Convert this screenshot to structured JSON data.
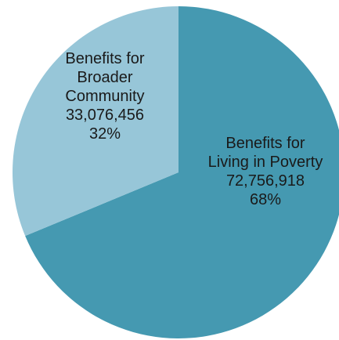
{
  "chart_data": {
    "type": "pie",
    "title": "",
    "slices": [
      {
        "label_lines": [
          "Benefits for",
          "Living in Poverty"
        ],
        "value": 72756918,
        "value_text": "72,756,918",
        "percent_text": "68%",
        "color": "#4599b1"
      },
      {
        "label_lines": [
          "Benefits for",
          "Broader",
          "Community"
        ],
        "value": 33076456,
        "value_text": "33,076,456",
        "percent_text": "32%",
        "color": "#97c6d8"
      }
    ],
    "start_angle_deg": 0,
    "direction": "clockwise",
    "legend": "none"
  }
}
